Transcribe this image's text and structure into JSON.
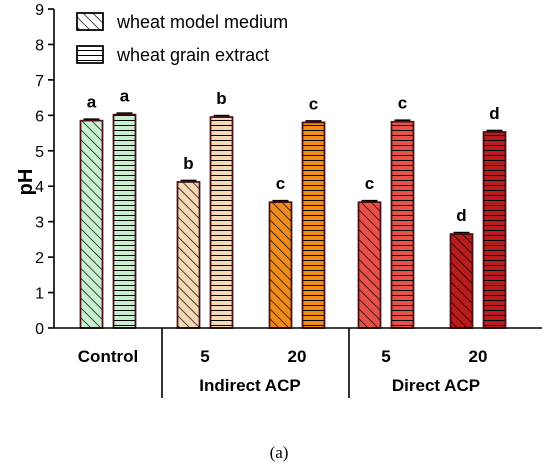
{
  "chart_data": {
    "type": "bar",
    "ylabel": "pH",
    "ylim": [
      0,
      9
    ],
    "yticks": [
      0,
      1,
      2,
      3,
      4,
      5,
      6,
      7,
      8,
      9
    ],
    "categories": [
      "Control",
      "5",
      "20",
      "5",
      "20"
    ],
    "groups": [
      {
        "label": "Indirect ACP",
        "categories": [
          "5",
          "20"
        ]
      },
      {
        "label": "Direct ACP",
        "categories": [
          "5",
          "20"
        ]
      }
    ],
    "series": [
      {
        "name": "wheat model medium",
        "pattern": "diagonal-hatch",
        "values": [
          5.85,
          4.12,
          3.55,
          3.55,
          2.65
        ],
        "labels": [
          "a",
          "b",
          "c",
          "c",
          "d"
        ]
      },
      {
        "name": "wheat grain extract",
        "pattern": "horizontal-lines",
        "values": [
          6.02,
          5.95,
          5.8,
          5.82,
          5.53
        ],
        "labels": [
          "a",
          "b",
          "c",
          "c",
          "d"
        ]
      }
    ],
    "colors": [
      "#c8f0d0",
      "#f5d9b5",
      "#f08c1a",
      "#e8504a",
      "#b81c1c"
    ],
    "legend_position": "top-left",
    "grid": false,
    "caption": "(a)"
  }
}
